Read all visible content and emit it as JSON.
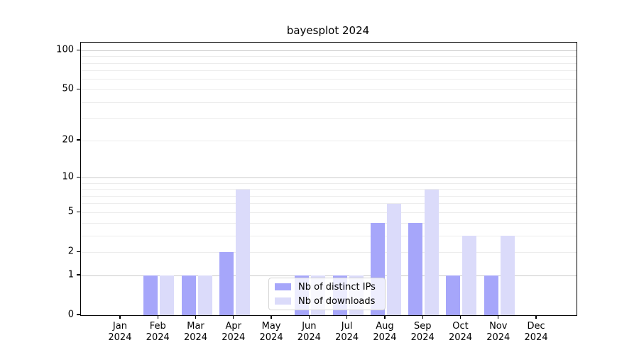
{
  "figure": {
    "title": "bayesplot 2024",
    "background": "#ffffff"
  },
  "legend": {
    "items": [
      {
        "label": "Nb of distinct IPs",
        "color": "#a6a6fa"
      },
      {
        "label": "Nb of downloads",
        "color": "#dbdbfa"
      }
    ]
  },
  "chart_data": {
    "type": "bar",
    "title": "bayesplot 2024",
    "categories": [
      "Jan",
      "Feb",
      "Mar",
      "Apr",
      "May",
      "Jun",
      "Jul",
      "Aug",
      "Sep",
      "Oct",
      "Nov",
      "Dec"
    ],
    "x_tick_second_line": "2024",
    "series": [
      {
        "name": "Nb of distinct IPs",
        "color": "#a6a6fa",
        "values": [
          0,
          1,
          1,
          2,
          0,
          1,
          1,
          4,
          4,
          1,
          1,
          0
        ]
      },
      {
        "name": "Nb of downloads",
        "color": "#dbdbfa",
        "values": [
          0,
          1,
          1,
          8,
          0,
          1,
          1,
          6,
          8,
          3,
          3,
          0
        ]
      }
    ],
    "xlabel": "",
    "ylabel": "",
    "yscale": "log1p",
    "ylim": [
      0,
      115
    ],
    "yticks": [
      0,
      1,
      2,
      5,
      10,
      20,
      50,
      100
    ],
    "major_gridlines": [
      1,
      10,
      100
    ],
    "minor_gridlines": [
      2,
      3,
      4,
      5,
      6,
      7,
      8,
      9,
      20,
      30,
      40,
      50,
      60,
      70,
      80,
      90
    ],
    "grid": true,
    "legend_position": "lower center"
  },
  "colors": {
    "major_grid": "#c9c9c9",
    "minor_grid": "#ececec",
    "spine": "#000000"
  }
}
